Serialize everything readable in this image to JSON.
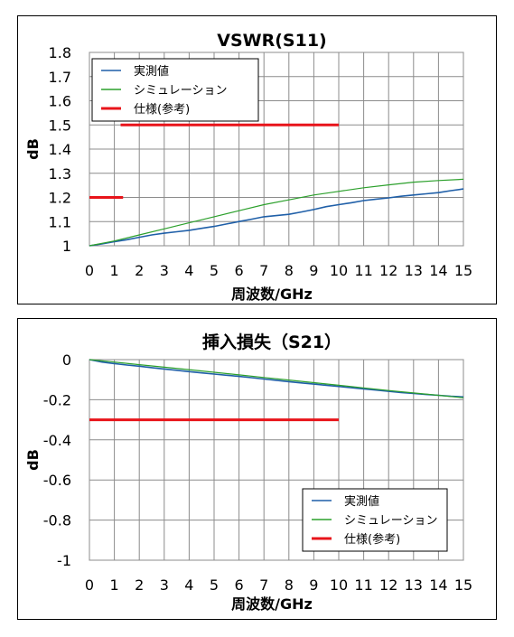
{
  "chart_data": [
    {
      "type": "line",
      "title": "VSWR(S11)",
      "xlabel": "周波数/GHz",
      "ylabel": "dB",
      "xlim": [
        0,
        15
      ],
      "ylim": [
        1,
        1.8
      ],
      "x_ticks": [
        "0",
        "1",
        "2",
        "3",
        "4",
        "5",
        "6",
        "7",
        "8",
        "9",
        "10",
        "11",
        "12",
        "13",
        "14",
        "15"
      ],
      "y_ticks": [
        "1",
        "1.1",
        "1.2",
        "1.3",
        "1.4",
        "1.5",
        "1.6",
        "1.7",
        "1.8"
      ],
      "grid": true,
      "legend_position": "top-left",
      "series": [
        {
          "name": "実測値",
          "color": "#1f5fa8",
          "x": [
            0,
            0.5,
            1,
            1.5,
            2,
            2.5,
            3,
            3.5,
            4,
            4.5,
            5,
            5.5,
            6,
            6.5,
            7,
            7.5,
            8,
            8.5,
            9,
            9.5,
            10,
            10.5,
            11,
            11.5,
            12,
            12.5,
            13,
            13.5,
            14,
            14.5,
            15
          ],
          "y": [
            1.0,
            1.008,
            1.017,
            1.025,
            1.035,
            1.045,
            1.052,
            1.058,
            1.064,
            1.072,
            1.08,
            1.09,
            1.1,
            1.11,
            1.12,
            1.125,
            1.13,
            1.14,
            1.15,
            1.162,
            1.17,
            1.178,
            1.187,
            1.193,
            1.198,
            1.205,
            1.21,
            1.215,
            1.22,
            1.228,
            1.235
          ]
        },
        {
          "name": "シミュレーション",
          "color": "#2ca02c",
          "x": [
            0,
            1,
            2,
            3,
            4,
            5,
            6,
            7,
            8,
            9,
            10,
            11,
            12,
            13,
            14,
            15
          ],
          "y": [
            1.0,
            1.02,
            1.045,
            1.07,
            1.095,
            1.12,
            1.145,
            1.17,
            1.19,
            1.21,
            1.225,
            1.24,
            1.252,
            1.263,
            1.27,
            1.275
          ]
        },
        {
          "name": "仕様(参考)",
          "color": "#e8141a",
          "segments": [
            {
              "x": [
                0,
                1.35
              ],
              "y": [
                1.2,
                1.2
              ]
            },
            {
              "x": [
                1.25,
                10
              ],
              "y": [
                1.5,
                1.5
              ]
            }
          ]
        }
      ]
    },
    {
      "type": "line",
      "title": "挿入損失（S21）",
      "xlabel": "周波数/GHz",
      "ylabel": "dB",
      "xlim": [
        0,
        15
      ],
      "ylim": [
        -1,
        0
      ],
      "x_ticks": [
        "0",
        "1",
        "2",
        "3",
        "4",
        "5",
        "6",
        "7",
        "8",
        "9",
        "10",
        "11",
        "12",
        "13",
        "14",
        "15"
      ],
      "y_ticks": [
        "0",
        "-0.2",
        "-0.4",
        "-0.6",
        "-0.8",
        "-1"
      ],
      "grid": true,
      "legend_position": "bottom-right",
      "series": [
        {
          "name": "実測値",
          "color": "#1f5fa8",
          "x": [
            0,
            0.5,
            1,
            1.5,
            2,
            2.5,
            3,
            3.5,
            4,
            4.5,
            5,
            5.5,
            6,
            6.5,
            7,
            7.5,
            8,
            8.5,
            9,
            9.5,
            10,
            10.5,
            11,
            11.5,
            12,
            12.5,
            13,
            13.5,
            14,
            14.5,
            15
          ],
          "y": [
            0,
            -0.012,
            -0.02,
            -0.027,
            -0.033,
            -0.04,
            -0.047,
            -0.053,
            -0.06,
            -0.066,
            -0.072,
            -0.078,
            -0.084,
            -0.09,
            -0.097,
            -0.103,
            -0.11,
            -0.116,
            -0.122,
            -0.128,
            -0.134,
            -0.14,
            -0.146,
            -0.152,
            -0.158,
            -0.164,
            -0.169,
            -0.174,
            -0.178,
            -0.183,
            -0.186
          ]
        },
        {
          "name": "シミュレーション",
          "color": "#2ca02c",
          "x": [
            0,
            1,
            2,
            3,
            4,
            5,
            6,
            7,
            8,
            9,
            10,
            11,
            12,
            13,
            14,
            15
          ],
          "y": [
            0,
            -0.012,
            -0.025,
            -0.038,
            -0.05,
            -0.063,
            -0.076,
            -0.089,
            -0.102,
            -0.115,
            -0.128,
            -0.141,
            -0.154,
            -0.166,
            -0.178,
            -0.19
          ]
        },
        {
          "name": "仕様(参考)",
          "color": "#e8141a",
          "segments": [
            {
              "x": [
                0,
                10
              ],
              "y": [
                -0.3,
                -0.3
              ]
            }
          ]
        }
      ]
    }
  ]
}
